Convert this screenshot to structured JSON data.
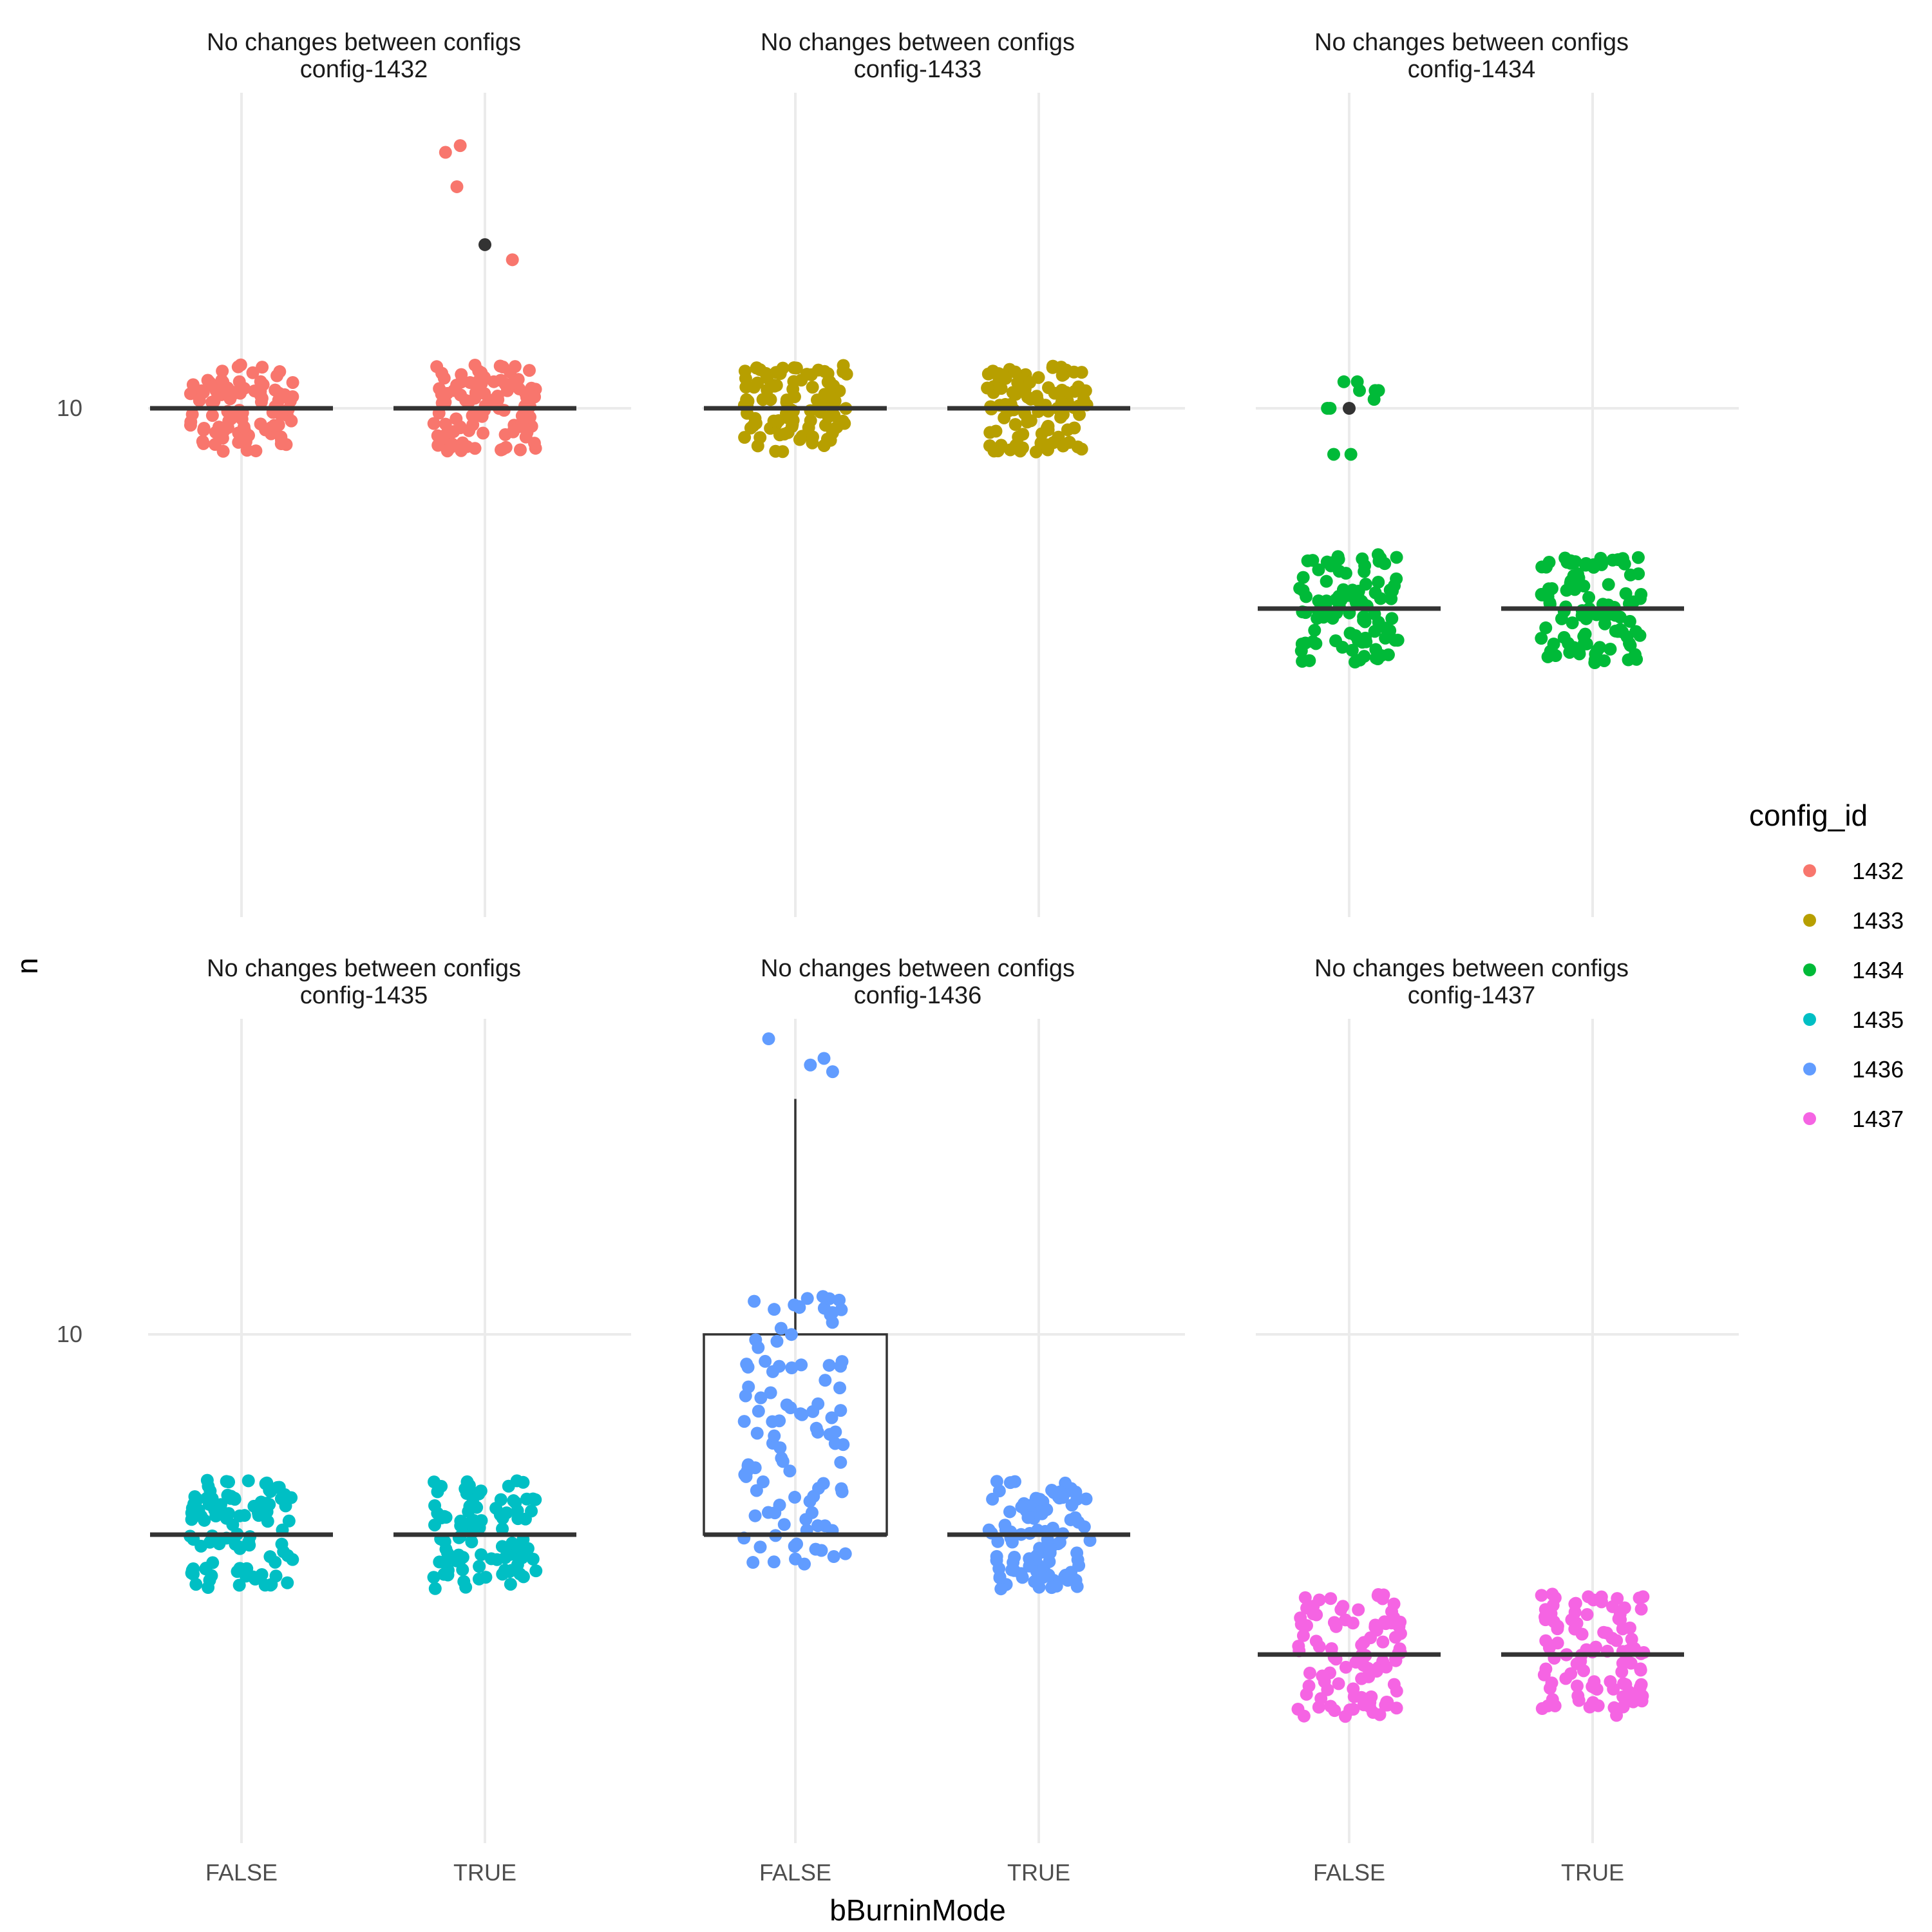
{
  "chart_data": {
    "type": "scatter",
    "overlay": "boxplot",
    "xlabel": "bBurninMode",
    "ylabel": "n",
    "x_categories": [
      "FALSE",
      "TRUE"
    ],
    "y_scale": "log",
    "y_tick_labels": [
      {
        "value": 10,
        "label": "10"
      }
    ],
    "ylim": [
      6.3,
      14.5
    ],
    "legend": {
      "title": "config_id",
      "position": "right"
    },
    "facets": [
      {
        "id": "1432",
        "title_line1": "No changes between configs",
        "title_line2": "config-1432",
        "color": "#F8766D",
        "boxes": [
          {
            "category": "FALSE",
            "q1": 10,
            "median": 10,
            "q3": 10,
            "whisker_low": 10,
            "whisker_high": 10,
            "outliers": [],
            "n_points": 100,
            "jitter_center": 10,
            "jitter_spread": 0.5
          },
          {
            "category": "TRUE",
            "q1": 10,
            "median": 10,
            "q3": 10,
            "whisker_low": 10,
            "whisker_high": 10,
            "outliers": [
              12
            ],
            "n_points": 100,
            "jitter_center": 10,
            "jitter_spread": 0.5,
            "extra_points": [
              11.8,
              12.8,
              13.3,
              13.4
            ]
          }
        ]
      },
      {
        "id": "1433",
        "title_line1": "No changes between configs",
        "title_line2": "config-1433",
        "color": "#B79F00",
        "boxes": [
          {
            "category": "FALSE",
            "q1": 10,
            "median": 10,
            "q3": 10,
            "whisker_low": 10,
            "whisker_high": 10,
            "outliers": [],
            "n_points": 100,
            "jitter_center": 10,
            "jitter_spread": 0.5
          },
          {
            "category": "TRUE",
            "q1": 10,
            "median": 10,
            "q3": 10,
            "whisker_low": 10,
            "whisker_high": 10,
            "outliers": [],
            "n_points": 100,
            "jitter_center": 10,
            "jitter_spread": 0.5
          }
        ]
      },
      {
        "id": "1434",
        "title_line1": "No changes between configs",
        "title_line2": "config-1434",
        "color": "#00BA38",
        "boxes": [
          {
            "category": "FALSE",
            "q1": 8,
            "median": 8,
            "q3": 8,
            "whisker_low": 8,
            "whisker_high": 8,
            "outliers": [
              10
            ],
            "n_points": 100,
            "jitter_center": 8,
            "jitter_spread": 0.5,
            "extra_points": [
              9.5,
              9.5,
              10.2,
              10.2,
              10.2,
              10.3,
              10.3,
              10.1,
              10.0,
              10.0
            ]
          },
          {
            "category": "TRUE",
            "q1": 8,
            "median": 8,
            "q3": 8,
            "whisker_low": 8,
            "whisker_high": 8,
            "outliers": [],
            "n_points": 100,
            "jitter_center": 8,
            "jitter_spread": 0.5
          }
        ]
      },
      {
        "id": "1435",
        "title_line1": "No changes between configs",
        "title_line2": "config-1435",
        "color": "#00BFC4",
        "boxes": [
          {
            "category": "FALSE",
            "q1": 8,
            "median": 8,
            "q3": 8,
            "whisker_low": 8,
            "whisker_high": 8,
            "outliers": [],
            "n_points": 100,
            "jitter_center": 8,
            "jitter_spread": 0.5
          },
          {
            "category": "TRUE",
            "q1": 8,
            "median": 8,
            "q3": 8,
            "whisker_low": 8,
            "whisker_high": 8,
            "outliers": [],
            "n_points": 100,
            "jitter_center": 8,
            "jitter_spread": 0.5
          }
        ]
      },
      {
        "id": "1436",
        "title_line1": "No changes between configs",
        "title_line2": "config-1436",
        "color": "#619CFF",
        "boxes": [
          {
            "category": "FALSE",
            "q1": 8,
            "median": 8,
            "q3": 10,
            "whisker_low": 8,
            "whisker_high": 13,
            "outliers": [],
            "n_points": 100,
            "jitter_center": 9,
            "jitter_spread": 1.5,
            "extra_points": [
              13.4,
              13.6,
              13.9,
              13.5
            ]
          },
          {
            "category": "TRUE",
            "q1": 8,
            "median": 8,
            "q3": 8,
            "whisker_low": 8,
            "whisker_high": 8,
            "outliers": [],
            "n_points": 100,
            "jitter_center": 8,
            "jitter_spread": 0.5
          }
        ]
      },
      {
        "id": "1437",
        "title_line1": "No changes between configs",
        "title_line2": "config-1437",
        "color": "#F564E3",
        "boxes": [
          {
            "category": "FALSE",
            "q1": 7,
            "median": 7,
            "q3": 7,
            "whisker_low": 7,
            "whisker_high": 7,
            "outliers": [],
            "n_points": 100,
            "jitter_center": 7,
            "jitter_spread": 0.5
          },
          {
            "category": "TRUE",
            "q1": 7,
            "median": 7,
            "q3": 7,
            "whisker_low": 7,
            "whisker_high": 7,
            "outliers": [],
            "n_points": 100,
            "jitter_center": 7,
            "jitter_spread": 0.5
          }
        ]
      }
    ]
  }
}
